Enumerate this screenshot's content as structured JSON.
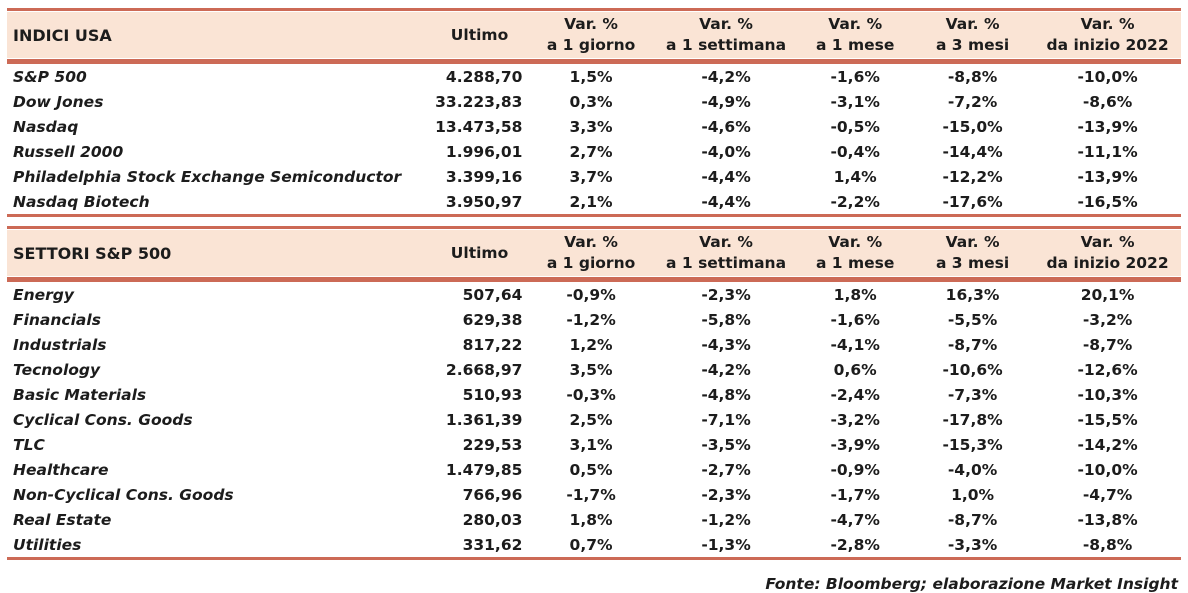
{
  "colors": {
    "header_bg": "#FAE4D5",
    "rule": "#CC6A56",
    "text": "#1C1C1C"
  },
  "footer": {
    "source": "Fonte: Bloomberg; elaborazione Market Insight"
  },
  "tables": [
    {
      "title": "INDICI USA",
      "ultimo_label": "Ultimo",
      "columns": [
        {
          "top": "Var. %",
          "bottom": "a 1 giorno"
        },
        {
          "top": "Var. %",
          "bottom": "a 1 settimana"
        },
        {
          "top": "Var. %",
          "bottom": "a 1 mese"
        },
        {
          "top": "Var. %",
          "bottom": "a 3 mesi"
        },
        {
          "top": "Var. %",
          "bottom": "da inizio 2022"
        }
      ],
      "rows": [
        {
          "name": "S&P 500",
          "ultimo": "4.288,70",
          "vars": [
            "1,5%",
            "-4,2%",
            "-1,6%",
            "-8,8%",
            "-10,0%"
          ]
        },
        {
          "name": "Dow Jones",
          "ultimo": "33.223,83",
          "vars": [
            "0,3%",
            "-4,9%",
            "-3,1%",
            "-7,2%",
            "-8,6%"
          ]
        },
        {
          "name": "Nasdaq",
          "ultimo": "13.473,58",
          "vars": [
            "3,3%",
            "-4,6%",
            "-0,5%",
            "-15,0%",
            "-13,9%"
          ]
        },
        {
          "name": "Russell 2000",
          "ultimo": "1.996,01",
          "vars": [
            "2,7%",
            "-4,0%",
            "-0,4%",
            "-14,4%",
            "-11,1%"
          ]
        },
        {
          "name": "Philadelphia Stock Exchange Semiconductor",
          "ultimo": "3.399,16",
          "vars": [
            "3,7%",
            "-4,4%",
            "1,4%",
            "-12,2%",
            "-13,9%"
          ]
        },
        {
          "name": "Nasdaq Biotech",
          "ultimo": "3.950,97",
          "vars": [
            "2,1%",
            "-4,4%",
            "-2,2%",
            "-17,6%",
            "-16,5%"
          ]
        }
      ]
    },
    {
      "title": "SETTORI S&P 500",
      "ultimo_label": "Ultimo",
      "columns": [
        {
          "top": "Var. %",
          "bottom": "a 1 giorno"
        },
        {
          "top": "Var. %",
          "bottom": "a 1 settimana"
        },
        {
          "top": "Var. %",
          "bottom": "a 1 mese"
        },
        {
          "top": "Var. %",
          "bottom": "a 3 mesi"
        },
        {
          "top": "Var. %",
          "bottom": "da inizio 2022"
        }
      ],
      "rows": [
        {
          "name": "Energy",
          "ultimo": "507,64",
          "vars": [
            "-0,9%",
            "-2,3%",
            "1,8%",
            "16,3%",
            "20,1%"
          ]
        },
        {
          "name": "Financials",
          "ultimo": "629,38",
          "vars": [
            "-1,2%",
            "-5,8%",
            "-1,6%",
            "-5,5%",
            "-3,2%"
          ]
        },
        {
          "name": "Industrials",
          "ultimo": "817,22",
          "vars": [
            "1,2%",
            "-4,3%",
            "-4,1%",
            "-8,7%",
            "-8,7%"
          ]
        },
        {
          "name": "Tecnology",
          "ultimo": "2.668,97",
          "vars": [
            "3,5%",
            "-4,2%",
            "0,6%",
            "-10,6%",
            "-12,6%"
          ]
        },
        {
          "name": "Basic Materials",
          "ultimo": "510,93",
          "vars": [
            "-0,3%",
            "-4,8%",
            "-2,4%",
            "-7,3%",
            "-10,3%"
          ]
        },
        {
          "name": "Cyclical Cons. Goods",
          "ultimo": "1.361,39",
          "vars": [
            "2,5%",
            "-7,1%",
            "-3,2%",
            "-17,8%",
            "-15,5%"
          ]
        },
        {
          "name": "TLC",
          "ultimo": "229,53",
          "vars": [
            "3,1%",
            "-3,5%",
            "-3,9%",
            "-15,3%",
            "-14,2%"
          ]
        },
        {
          "name": "Healthcare",
          "ultimo": "1.479,85",
          "vars": [
            "0,5%",
            "-2,7%",
            "-0,9%",
            "-4,0%",
            "-10,0%"
          ]
        },
        {
          "name": "Non-Cyclical Cons. Goods",
          "ultimo": "766,96",
          "vars": [
            "-1,7%",
            "-2,3%",
            "-1,7%",
            "1,0%",
            "-4,7%"
          ]
        },
        {
          "name": "Real Estate",
          "ultimo": "280,03",
          "vars": [
            "1,8%",
            "-1,2%",
            "-4,7%",
            "-8,7%",
            "-13,8%"
          ]
        },
        {
          "name": "Utilities",
          "ultimo": "331,62",
          "vars": [
            "0,7%",
            "-1,3%",
            "-2,8%",
            "-3,3%",
            "-8,8%"
          ]
        }
      ]
    }
  ]
}
